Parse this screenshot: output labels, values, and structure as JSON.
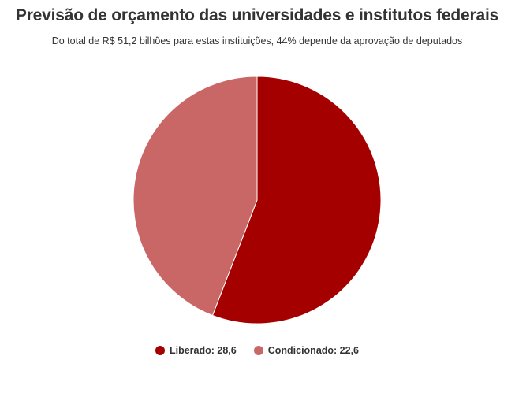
{
  "title": "Previsão de orçamento das universidades e institutos federais",
  "subtitle": "Do total de R$ 51,2 bilhões para estas instituições, 44% depende da aprovação de deputados",
  "legend": {
    "items": [
      {
        "label": "Liberado: 28,6",
        "color": "#a50000"
      },
      {
        "label": "Condicionado: 22,6",
        "color": "#c96767"
      }
    ]
  },
  "chart_data": {
    "type": "pie",
    "title": "Previsão de orçamento das universidades e institutos federais",
    "subtitle": "Do total de R$ 51,2 bilhões para estas instituições, 44% depende da aprovação de deputados",
    "categories": [
      "Liberado",
      "Condicionado"
    ],
    "values": [
      28.6,
      22.6
    ],
    "colors": [
      "#a50000",
      "#c96767"
    ],
    "legend_position": "bottom"
  }
}
